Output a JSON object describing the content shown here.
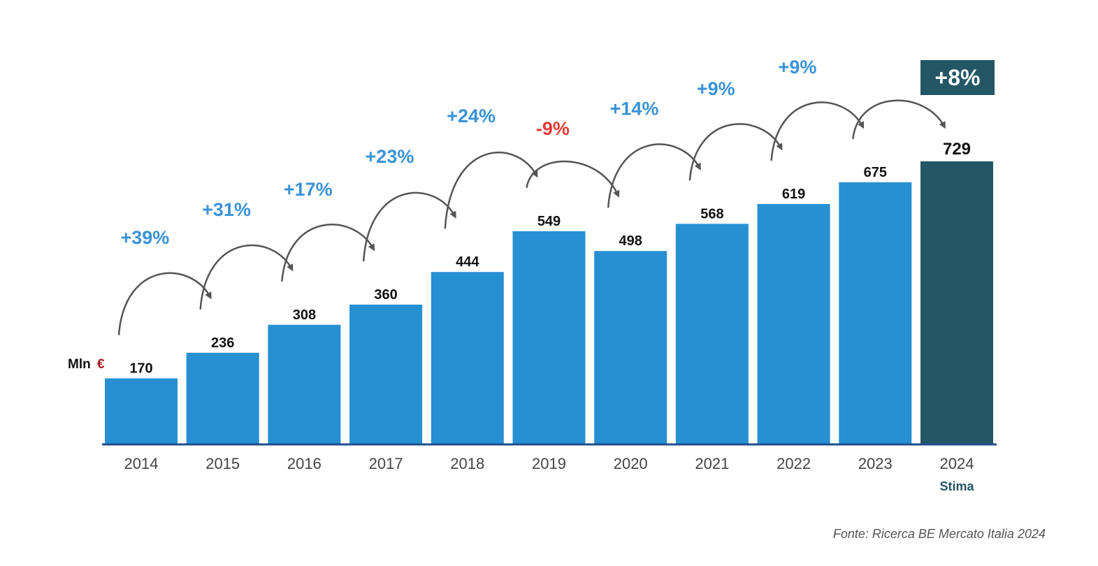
{
  "chart_data": {
    "type": "bar",
    "title": "",
    "unit_label": "Mln",
    "unit_symbol": "€",
    "categories": [
      "2014",
      "2015",
      "2016",
      "2017",
      "2018",
      "2019",
      "2020",
      "2021",
      "2022",
      "2023",
      "2024"
    ],
    "values": [
      170,
      236,
      308,
      360,
      444,
      549,
      498,
      568,
      619,
      675,
      729
    ],
    "estimate_category": "2024",
    "estimate_note": "Stima",
    "growth_labels": [
      "+39%",
      "+31%",
      "+17%",
      "+23%",
      "+24%",
      "-9%",
      "+14%",
      "+9%",
      "+9%",
      "+8%"
    ],
    "ylim": [
      0,
      800
    ],
    "xlabel": "",
    "ylabel": "",
    "source": "Fonte: Ricerca BE Mercato Italia 2024",
    "colors": {
      "bar": "#2690d3",
      "bar_estimate": "#245765",
      "growth_positive": "#3a93d7",
      "growth_negative": "#e53935",
      "euro_symbol": "#a61b1b",
      "arrow": "#555555",
      "axis": "#1f4e8a",
      "estimate_text": "#245765"
    }
  }
}
